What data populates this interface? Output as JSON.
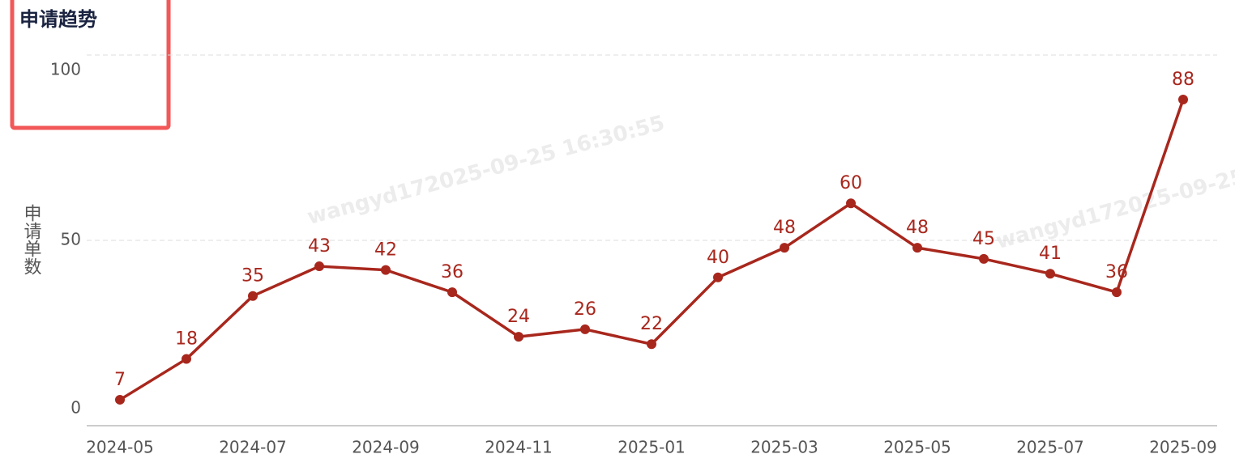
{
  "chart_data": {
    "type": "line",
    "title": "申请趋势",
    "ylabel": "申请单数",
    "watermark": "wangyd172025-09-25 16:30:55",
    "categories": [
      "2024-05",
      null,
      "2024-07",
      null,
      "2024-09",
      null,
      "2024-11",
      null,
      "2025-01",
      null,
      "2025-03",
      null,
      "2025-05",
      null,
      "2025-07",
      null,
      "2025-09"
    ],
    "values": [
      7,
      18,
      35,
      43,
      42,
      36,
      24,
      26,
      22,
      40,
      48,
      60,
      48,
      45,
      41,
      36,
      88
    ],
    "color": "#a8271d",
    "ylim": [
      0,
      100
    ],
    "yticks": [
      0,
      50,
      100
    ],
    "grid": true
  }
}
